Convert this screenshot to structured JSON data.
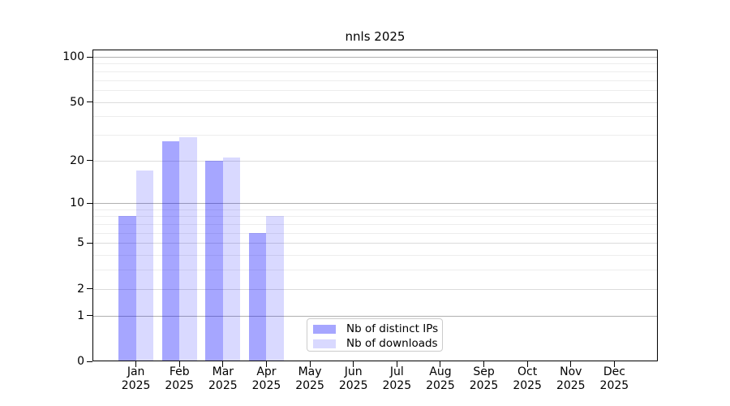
{
  "title": "nnls 2025",
  "chart_data": {
    "type": "bar",
    "title": "nnls 2025",
    "categories": [
      "Jan",
      "Feb",
      "Mar",
      "Apr",
      "May",
      "Jun",
      "Jul",
      "Aug",
      "Sep",
      "Oct",
      "Nov",
      "Dec"
    ],
    "year_label": "2025",
    "series": [
      {
        "name": "Nb of distinct IPs",
        "color": "rgba(0,0,255,0.35)",
        "values": [
          8,
          27,
          20,
          6,
          0,
          0,
          0,
          0,
          0,
          0,
          0,
          0
        ]
      },
      {
        "name": "Nb of downloads",
        "color": "rgba(0,0,255,0.15)",
        "values": [
          17,
          29,
          21,
          8,
          0,
          0,
          0,
          0,
          0,
          0,
          0,
          0
        ]
      }
    ],
    "y_axis": {
      "scale": "log10(1+x)",
      "major_ticks": [
        0,
        1,
        2,
        5,
        10,
        20,
        50,
        100
      ],
      "emphasized_gridlines": [
        1,
        10,
        100
      ],
      "minor_gridlines": [
        3,
        4,
        6,
        7,
        8,
        9,
        30,
        40,
        60,
        70,
        80,
        90
      ],
      "ylim": [
        0,
        112
      ]
    },
    "x_axis": {
      "xlim": [
        -1,
        12
      ],
      "tick_label_lines": 2
    },
    "grid": true,
    "legend_position": "lower center",
    "colors": {
      "grid_emphasized": "#b0b0b0",
      "grid_major": "#dcdcdc",
      "grid_minor": "#ededed",
      "axis": "#000000",
      "legend_border": "#cccccc",
      "text": "#000000",
      "background": "#ffffff"
    }
  }
}
